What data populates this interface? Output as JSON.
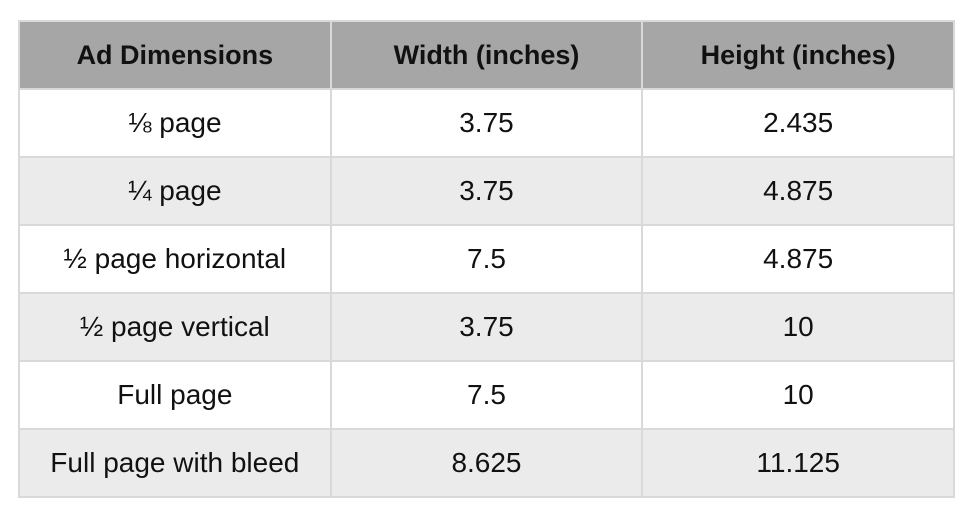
{
  "table": {
    "header": [
      "Ad Dimensions",
      "Width (inches)",
      "Height (inches)"
    ],
    "rows": [
      [
        "⅛ page",
        "3.75",
        "2.435"
      ],
      [
        "¼ page",
        "3.75",
        "4.875"
      ],
      [
        "½ page horizontal",
        "7.5",
        "4.875"
      ],
      [
        "½ page vertical",
        "3.75",
        "10"
      ],
      [
        "Full page",
        "7.5",
        "10"
      ],
      [
        "Full page with bleed",
        "8.625",
        "11.125"
      ]
    ]
  }
}
